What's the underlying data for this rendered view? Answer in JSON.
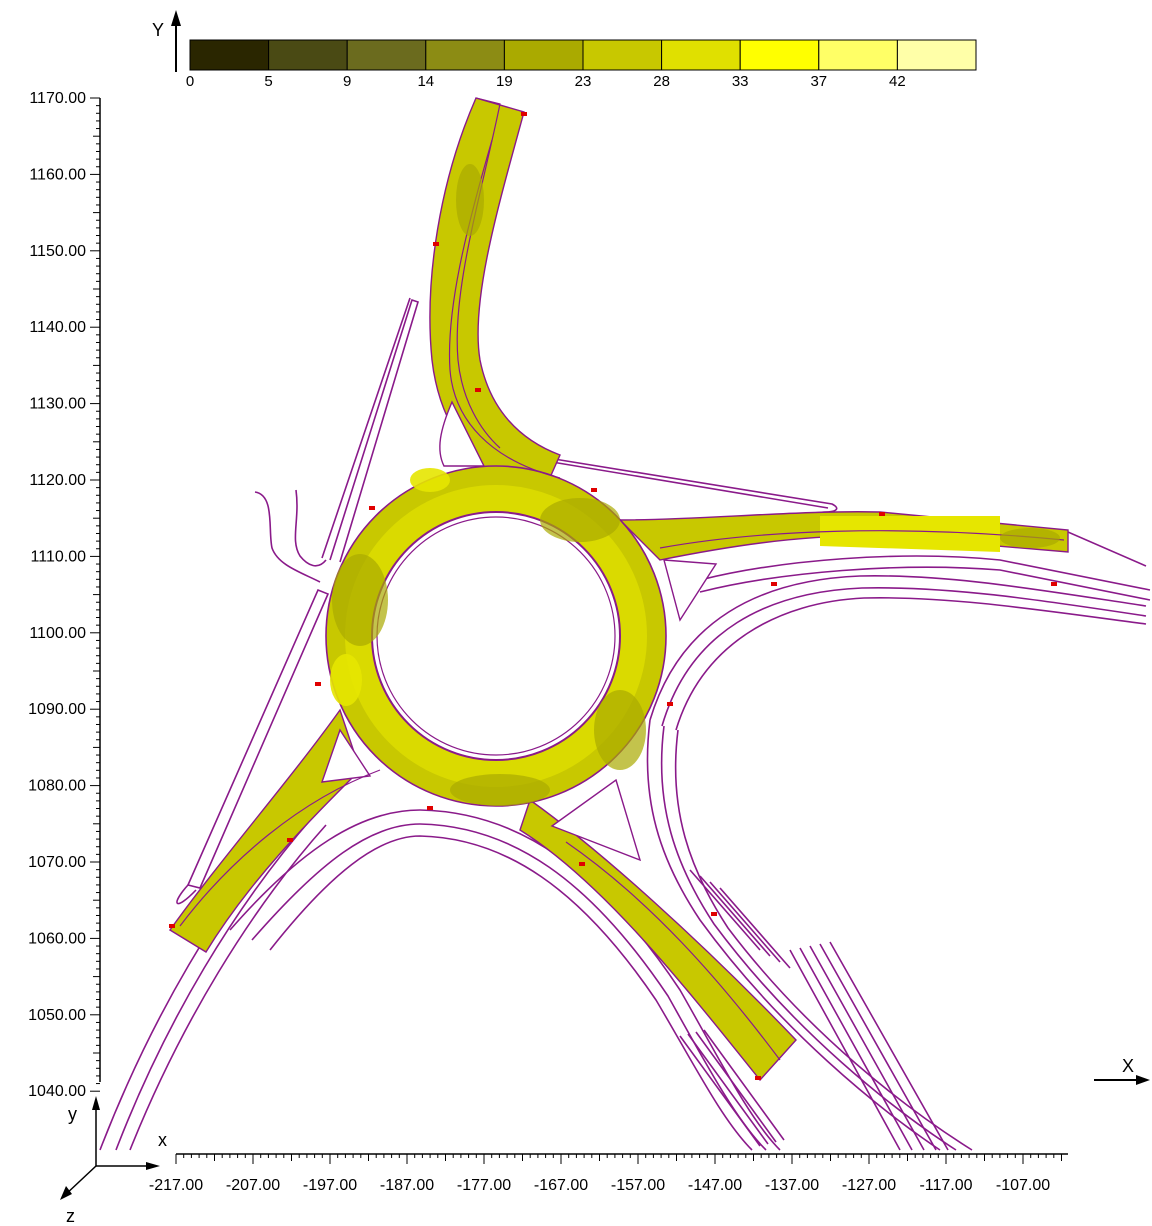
{
  "colorbar": {
    "labels": [
      "0",
      "5",
      "9",
      "14",
      "19",
      "23",
      "28",
      "33",
      "37",
      "42"
    ],
    "colors": [
      "#2a2600",
      "#4a4a14",
      "#6b6b1e",
      "#8c8c14",
      "#aaaa00",
      "#c8c800",
      "#e0e000",
      "#ffff00",
      "#ffff66",
      "#ffffa8"
    ]
  },
  "axes": {
    "y_title": "Y",
    "x_title": "X",
    "y_tick_labels": [
      "1170.00",
      "1160.00",
      "1150.00",
      "1140.00",
      "1130.00",
      "1120.00",
      "1110.00",
      "1100.00",
      "1090.00",
      "1080.00",
      "1070.00",
      "1060.00",
      "1050.00",
      "1040.00"
    ],
    "x_tick_labels": [
      "-217.00",
      "-207.00",
      "-197.00",
      "-187.00",
      "-177.00",
      "-167.00",
      "-157.00",
      "-147.00",
      "-137.00",
      "-127.00",
      "-117.00",
      "-107.00"
    ]
  },
  "triad": {
    "x": "x",
    "y": "y",
    "z": "z"
  },
  "colors": {
    "road_outline": "#8a1a8a",
    "road_fill": "#c8c800",
    "road_fill_light": "#e6e600",
    "marker": "#e00000"
  }
}
